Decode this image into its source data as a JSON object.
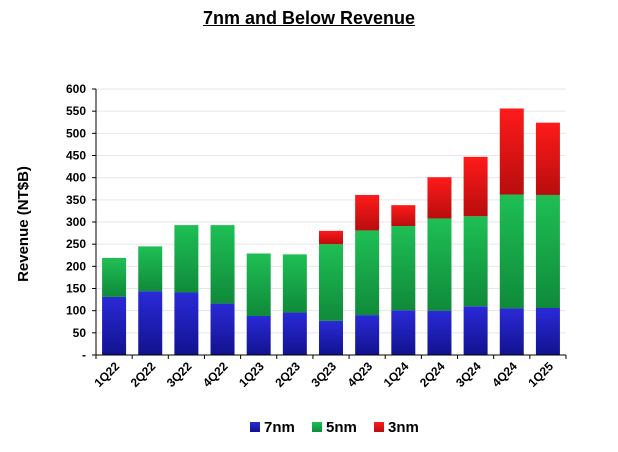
{
  "chart_data": {
    "type": "bar",
    "stacked": true,
    "title": "7nm and Below Revenue",
    "xlabel": "",
    "ylabel": "Revenue (NT$B)",
    "ylim": [
      0,
      600
    ],
    "yticks": [
      0,
      50,
      100,
      150,
      200,
      250,
      300,
      350,
      400,
      450,
      500,
      550,
      600
    ],
    "ytick_labels": [
      "-",
      "50",
      "100",
      "150",
      "200",
      "250",
      "300",
      "350",
      "400",
      "450",
      "500",
      "550",
      "600"
    ],
    "categories": [
      "1Q22",
      "2Q22",
      "3Q22",
      "4Q22",
      "1Q23",
      "2Q23",
      "3Q23",
      "4Q23",
      "1Q24",
      "2Q24",
      "3Q24",
      "4Q24",
      "1Q25"
    ],
    "series": [
      {
        "name": "7nm",
        "color": "#1a1ab8",
        "values": [
          131,
          144,
          141,
          116,
          88,
          96,
          77,
          90,
          101,
          100,
          110,
          105,
          106
        ]
      },
      {
        "name": "5nm",
        "color": "#17a84a",
        "values": [
          88,
          101,
          152,
          177,
          141,
          131,
          173,
          191,
          190,
          208,
          203,
          257,
          255
        ]
      },
      {
        "name": "3nm",
        "color": "#ee1111",
        "values": [
          0,
          0,
          0,
          0,
          0,
          0,
          30,
          80,
          47,
          93,
          134,
          194,
          163
        ]
      }
    ],
    "legend_position": "bottom-center"
  }
}
